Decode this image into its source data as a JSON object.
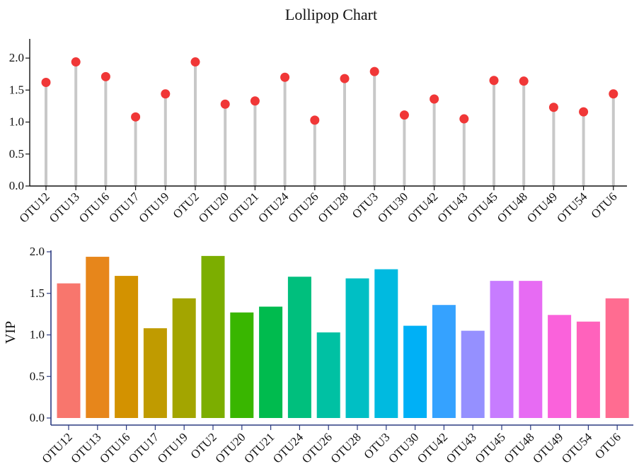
{
  "chart_data": [
    {
      "type": "lollipop",
      "title": "Lollipop Chart",
      "xlabel": "",
      "ylabel": "",
      "categories": [
        "OTU12",
        "OTU13",
        "OTU16",
        "OTU17",
        "OTU19",
        "OTU2",
        "OTU20",
        "OTU21",
        "OTU24",
        "OTU26",
        "OTU28",
        "OTU3",
        "OTU30",
        "OTU42",
        "OTU43",
        "OTU45",
        "OTU48",
        "OTU49",
        "OTU54",
        "OTU6"
      ],
      "values": [
        1.62,
        1.94,
        1.71,
        1.08,
        1.44,
        1.94,
        1.28,
        1.33,
        1.7,
        1.03,
        1.68,
        1.79,
        1.11,
        1.36,
        1.05,
        1.65,
        1.64,
        1.23,
        1.16,
        1.44
      ],
      "ylim": [
        0,
        2.3
      ],
      "yticks": [
        "0.0",
        "0.5",
        "1.0",
        "1.5",
        "2.0"
      ],
      "colors": {
        "stem": "#c8c8c8",
        "dot": "#f03737",
        "axis": "#111111"
      }
    },
    {
      "type": "bar",
      "title": "",
      "xlabel": "",
      "ylabel": "VIP",
      "categories": [
        "OTU12",
        "OTU13",
        "OTU16",
        "OTU17",
        "OTU19",
        "OTU2",
        "OTU20",
        "OTU21",
        "OTU24",
        "OTU26",
        "OTU28",
        "OTU3",
        "OTU30",
        "OTU42",
        "OTU43",
        "OTU45",
        "OTU48",
        "OTU49",
        "OTU54",
        "OTU6"
      ],
      "values": [
        1.62,
        1.94,
        1.71,
        1.08,
        1.44,
        1.95,
        1.27,
        1.34,
        1.7,
        1.03,
        1.68,
        1.79,
        1.11,
        1.36,
        1.05,
        1.65,
        1.65,
        1.24,
        1.16,
        1.44
      ],
      "ylim": [
        0,
        2.0
      ],
      "yticks": [
        "0.0",
        "0.5",
        "1.0",
        "1.5",
        "2.0"
      ],
      "colors": {
        "axis": "#2b3a80",
        "bars": [
          "#f8766d",
          "#e7861b",
          "#d39200",
          "#c09b00",
          "#a3a500",
          "#7cae00",
          "#39b600",
          "#00bb4e",
          "#00bf7d",
          "#00c1a3",
          "#00bfc4",
          "#00bae0",
          "#00b0f6",
          "#35a2ff",
          "#9590ff",
          "#c77cff",
          "#e76bf3",
          "#fa62db",
          "#ff62bc",
          "#ff6c91"
        ]
      }
    }
  ]
}
